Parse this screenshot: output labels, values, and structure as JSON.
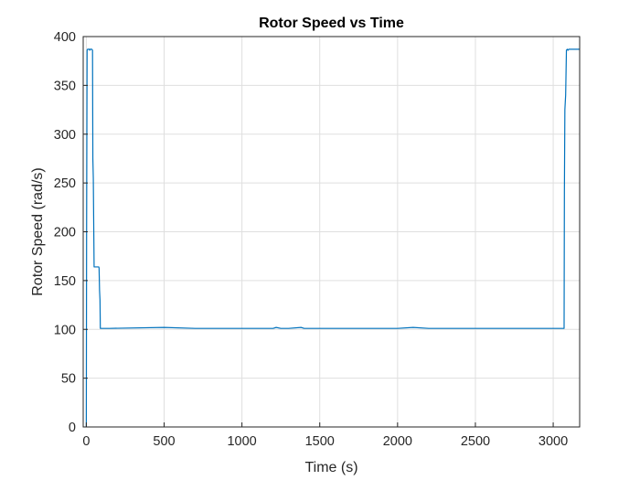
{
  "colors": {
    "series": "#0072BD",
    "axis": "#262626",
    "grid": "#dfdfdf",
    "background": "#ffffff"
  },
  "chart_data": {
    "type": "line",
    "title": "Rotor Speed vs Time",
    "xlabel": "Time (s)",
    "ylabel": "Rotor Speed (rad/s)",
    "xlim": [
      -20,
      3170
    ],
    "ylim": [
      0,
      400
    ],
    "xticks": [
      0,
      500,
      1000,
      1500,
      2000,
      2500,
      3000
    ],
    "yticks": [
      0,
      50,
      100,
      150,
      200,
      250,
      300,
      350,
      400
    ],
    "grid": true,
    "legend": "none",
    "series": [
      {
        "x": [
          0,
          2,
          5,
          8,
          10,
          15,
          20,
          22,
          25,
          30,
          35,
          40,
          42,
          45,
          50,
          55,
          60,
          65,
          70,
          75,
          80,
          82,
          85,
          88,
          90,
          92,
          95,
          100,
          150,
          500,
          700,
          1000,
          1200,
          1220,
          1250,
          1300,
          1380,
          1400,
          1420,
          1500,
          1600,
          1800,
          2000,
          2100,
          2200,
          2500,
          2550,
          2700,
          2900,
          3000,
          3070,
          3072,
          3075,
          3080,
          3085,
          3090,
          3095,
          3100,
          3170
        ],
        "y": [
          0,
          205,
          386,
          387,
          387,
          387,
          387,
          386,
          387,
          387,
          387,
          386,
          275,
          255,
          164,
          164,
          164,
          164,
          164,
          164,
          164,
          163,
          140,
          130,
          101,
          101,
          101,
          101,
          101,
          102,
          101,
          101,
          101,
          102,
          101,
          101,
          102,
          101,
          101,
          101,
          101,
          101,
          101,
          102,
          101,
          101,
          101,
          101,
          101,
          101,
          101,
          240,
          325,
          340,
          386,
          387,
          386,
          387,
          387
        ]
      }
    ]
  }
}
